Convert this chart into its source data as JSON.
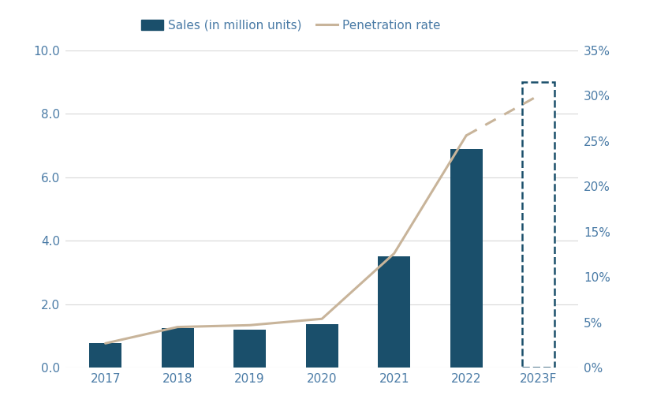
{
  "years": [
    "2017",
    "2018",
    "2019",
    "2020",
    "2021",
    "2022",
    "2023F"
  ],
  "sales": [
    0.77,
    1.26,
    1.21,
    1.37,
    3.52,
    6.89,
    9.0
  ],
  "penetration": [
    2.7,
    4.5,
    4.7,
    5.4,
    12.6,
    25.6,
    30.0
  ],
  "bar_color": "#1A4F6B",
  "line_color": "#C8B49A",
  "ylim_left": [
    0,
    10.0
  ],
  "ylim_right": [
    0,
    35.0
  ],
  "yticks_left": [
    0.0,
    2.0,
    4.0,
    6.0,
    8.0,
    10.0
  ],
  "yticks_right": [
    0,
    5,
    10,
    15,
    20,
    25,
    30,
    35
  ],
  "legend_sales": "Sales (in million units)",
  "legend_pen": "Penetration rate",
  "background_color": "#FFFFFF",
  "grid_color": "#D8D8D8",
  "tick_color": "#4A7BA6",
  "font_size": 11
}
